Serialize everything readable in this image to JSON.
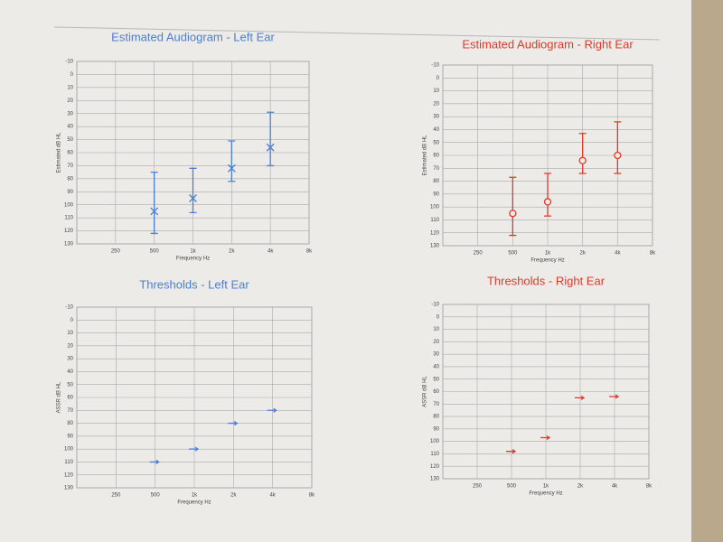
{
  "chart_data": [
    {
      "type": "errorbar",
      "title": "Estimated Audiogram - Left Ear",
      "ylabel": "Estimated dB HL",
      "xlabel": "Frequency Hz",
      "categories": [
        null,
        "250",
        "500",
        "1k",
        "2k",
        "4k",
        "8k"
      ],
      "series": [
        {
          "name": null,
          "color": "#4a7fd4",
          "marker": "x",
          "values": [
            null,
            null,
            105,
            95,
            72,
            56,
            null
          ],
          "error_low": [
            null,
            null,
            75,
            72,
            51,
            29,
            null
          ],
          "error_high": [
            null,
            null,
            122,
            106,
            82,
            70,
            null
          ]
        }
      ],
      "ylim": [
        -10,
        130
      ],
      "yticks": [
        -10,
        0,
        10,
        20,
        30,
        40,
        50,
        60,
        70,
        80,
        90,
        100,
        110,
        120,
        130
      ],
      "yinverted": true,
      "grid": true
    },
    {
      "type": "errorbar",
      "title": "Estimated Audiogram - Right Ear",
      "ylabel": "Estimated dB HL",
      "xlabel": "Frequency Hz",
      "categories": [
        null,
        "250",
        "500",
        "1k",
        "2k",
        "4k",
        "8k"
      ],
      "series": [
        {
          "name": null,
          "color": "#e0392c",
          "marker": "o",
          "values": [
            null,
            null,
            105,
            96,
            64,
            60,
            null
          ],
          "error_low": [
            null,
            null,
            77,
            74,
            43,
            34,
            null
          ],
          "error_high": [
            null,
            null,
            122,
            107,
            74,
            74,
            null
          ]
        }
      ],
      "ylim": [
        -10,
        130
      ],
      "yticks": [
        -10,
        0,
        10,
        20,
        30,
        40,
        50,
        60,
        70,
        80,
        90,
        100,
        110,
        120,
        130
      ],
      "yinverted": true,
      "grid": true
    },
    {
      "type": "threshold",
      "title": "Thresholds - Left Ear",
      "ylabel": "ASSR dB HL",
      "xlabel": "Frequency Hz",
      "categories": [
        null,
        "250",
        "500",
        "1k",
        "2k",
        "4k",
        "8k"
      ],
      "series": [
        {
          "name": null,
          "color": "#4a7fd4",
          "marker": "arrow",
          "values": [
            null,
            null,
            110,
            100,
            80,
            70,
            null
          ]
        }
      ],
      "ylim": [
        -10,
        130
      ],
      "yticks": [
        -10,
        0,
        10,
        20,
        30,
        40,
        50,
        60,
        70,
        80,
        90,
        100,
        110,
        120,
        130
      ],
      "yinverted": true,
      "grid": true
    },
    {
      "type": "threshold",
      "title": "Thresholds - Right Ear",
      "ylabel": "ASSR dB HL",
      "xlabel": "Frequency Hz",
      "categories": [
        null,
        "250",
        "500",
        "1k",
        "2k",
        "4k",
        "8k"
      ],
      "series": [
        {
          "name": null,
          "color": "#e0392c",
          "marker": "arrow",
          "values": [
            null,
            null,
            108,
            97,
            65,
            64,
            null
          ]
        }
      ],
      "ylim": [
        -10,
        130
      ],
      "yticks": [
        -10,
        0,
        10,
        20,
        30,
        40,
        50,
        60,
        70,
        80,
        90,
        100,
        110,
        120,
        130
      ],
      "yinverted": true,
      "grid": true
    }
  ]
}
